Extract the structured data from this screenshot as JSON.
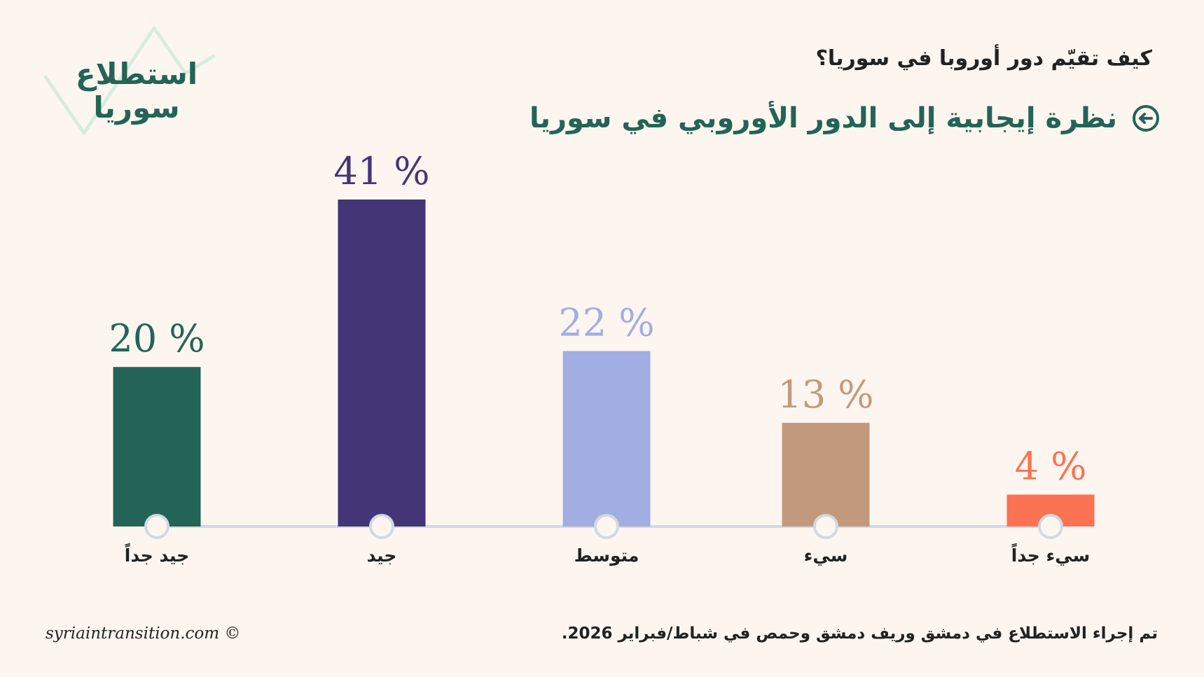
{
  "logo": {
    "line1": "استطلاع",
    "line2": "سوريا"
  },
  "header": {
    "question": "كيف تقيّم دور أوروبا في سوريا؟",
    "headline": "نظرة إيجابية إلى الدور الأوروبي في سوريا",
    "headline_icon": "arrow-left-circle-icon"
  },
  "chart_data": {
    "type": "bar",
    "categories": [
      "جيد جداً",
      "جيد",
      "متوسط",
      "سيء",
      "سيء جداً"
    ],
    "values": [
      20,
      41,
      22,
      13,
      4
    ],
    "value_labels": [
      "20 %",
      "41 %",
      "22 %",
      "13 %",
      "4 %"
    ],
    "colors": [
      "#236456",
      "#433576",
      "#a2ade1",
      "#c3997d",
      "#fb7352"
    ],
    "ylim": [
      0,
      41
    ],
    "grid": false,
    "title": "",
    "xlabel": "",
    "ylabel": ""
  },
  "footer": {
    "note": "تم إجراء الاستطلاع في دمشق وريف دمشق وحمص في شباط/فبراير 2026.",
    "copyright": "syriaintransition.com ©"
  }
}
